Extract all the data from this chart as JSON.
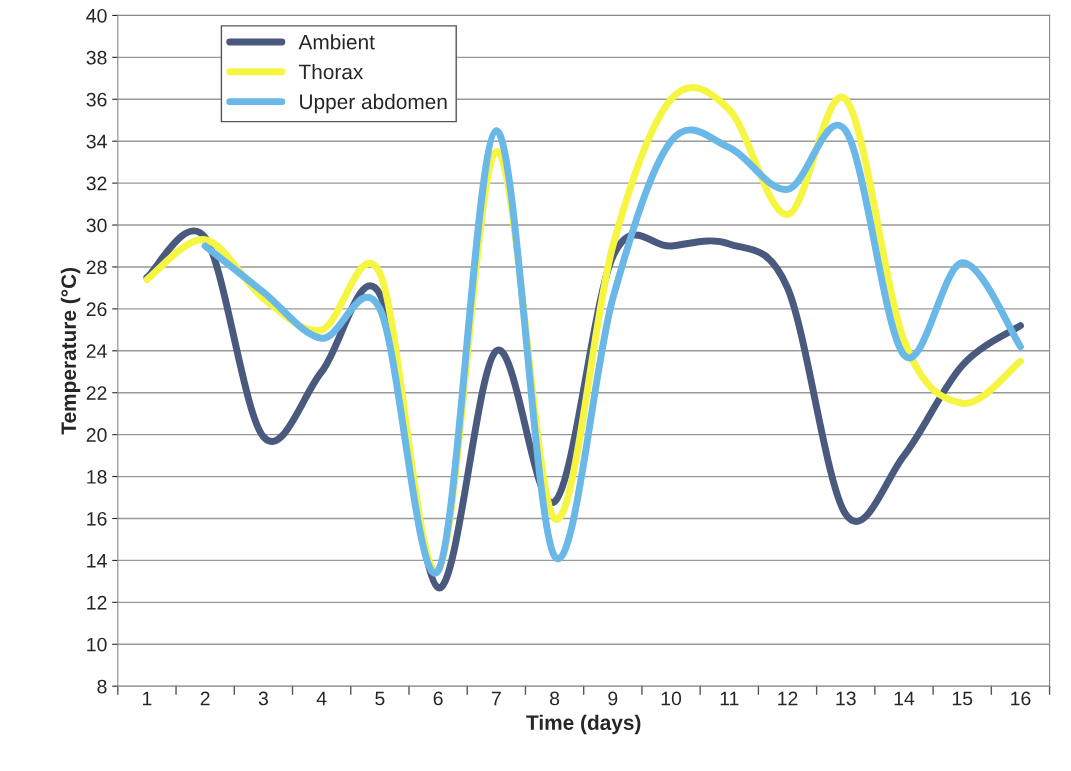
{
  "chart_data": {
    "type": "line",
    "xlabel": "Time (days)",
    "ylabel": "Temperature (°C)",
    "categories": [
      "1",
      "2",
      "3",
      "4",
      "5",
      "6",
      "7",
      "8",
      "9",
      "10",
      "11",
      "12",
      "13",
      "14",
      "15",
      "16"
    ],
    "series": [
      {
        "name": "Ambient",
        "color": "#4a5a7e",
        "values": [
          27.5,
          29.4,
          19.9,
          23.0,
          26.7,
          12.7,
          24.0,
          16.8,
          28.5,
          29.0,
          29.1,
          27.0,
          16.2,
          19.0,
          23.3,
          25.2
        ]
      },
      {
        "name": "Thorax",
        "color": "#f5f542",
        "values": [
          27.4,
          29.3,
          26.5,
          25.0,
          27.7,
          13.5,
          33.5,
          16.0,
          29.0,
          36.0,
          35.5,
          30.5,
          36.0,
          24.5,
          21.5,
          23.5
        ]
      },
      {
        "name": "Upper abdomen",
        "color": "#6ab8e8",
        "values": [
          null,
          29.0,
          26.8,
          24.6,
          26.0,
          13.5,
          34.5,
          14.2,
          26.5,
          34.0,
          33.7,
          31.7,
          34.5,
          23.8,
          28.2,
          24.2
        ]
      }
    ],
    "ylim": [
      8,
      40
    ],
    "yticks": [
      8,
      10,
      12,
      14,
      16,
      18,
      20,
      22,
      24,
      26,
      28,
      30,
      32,
      34,
      36,
      38,
      40
    ],
    "grid": "y",
    "legend": "top left",
    "marker": "none",
    "line_style": "solid"
  }
}
